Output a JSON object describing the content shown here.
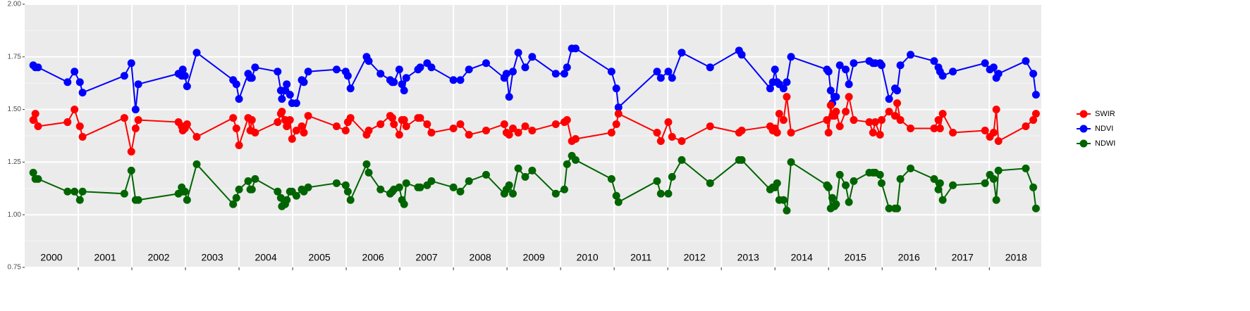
{
  "chart_data": {
    "type": "line",
    "x": [
      2000.16,
      2000.2,
      2000.25,
      2000.8,
      2000.93,
      2001.03,
      2001.08,
      2001.86,
      2001.99,
      2002.07,
      2002.12,
      2002.87,
      2002.93,
      2002.95,
      2002.99,
      2003.03,
      2003.21,
      2003.89,
      2003.95,
      2004.0,
      2004.17,
      2004.21,
      2004.24,
      2004.3,
      2004.72,
      2004.78,
      2004.8,
      2004.86,
      2004.89,
      2004.95,
      2004.99,
      2005.07,
      2005.17,
      2005.21,
      2005.29,
      2005.82,
      2005.99,
      2006.03,
      2006.08,
      2006.38,
      2006.42,
      2006.64,
      2006.82,
      2006.86,
      2006.89,
      2006.99,
      2007.04,
      2007.08,
      2007.12,
      2007.34,
      2007.38,
      2007.51,
      2007.59,
      2008.0,
      2008.13,
      2008.29,
      2008.61,
      2008.95,
      2008.99,
      2009.04,
      2009.11,
      2009.21,
      2009.34,
      2009.47,
      2009.91,
      2010.07,
      2010.12,
      2010.21,
      2010.28,
      2010.95,
      2011.04,
      2011.08,
      2011.8,
      2011.87,
      2012.01,
      2012.08,
      2012.26,
      2012.79,
      2013.33,
      2013.38,
      2013.91,
      2013.96,
      2014.0,
      2014.04,
      2014.08,
      2014.16,
      2014.22,
      2014.3,
      2014.97,
      2015.0,
      2015.04,
      2015.07,
      2015.11,
      2015.14,
      2015.21,
      2015.32,
      2015.38,
      2015.47,
      2015.76,
      2015.83,
      2015.87,
      2015.96,
      2015.99,
      2016.13,
      2016.24,
      2016.28,
      2016.34,
      2016.53,
      2016.97,
      2017.05,
      2017.08,
      2017.13,
      2017.32,
      2017.92,
      2018.01,
      2018.08,
      2018.13,
      2018.17,
      2018.68,
      2018.82,
      2018.87
    ],
    "series": [
      {
        "name": "SWIR",
        "color": "#ff0000",
        "values": [
          1.45,
          1.48,
          1.42,
          1.44,
          1.5,
          1.42,
          1.37,
          1.46,
          1.3,
          1.41,
          1.45,
          1.44,
          1.42,
          1.4,
          1.41,
          1.43,
          1.37,
          1.46,
          1.41,
          1.33,
          1.46,
          1.4,
          1.45,
          1.39,
          1.44,
          1.48,
          1.49,
          1.45,
          1.42,
          1.45,
          1.36,
          1.4,
          1.42,
          1.39,
          1.47,
          1.42,
          1.4,
          1.44,
          1.46,
          1.38,
          1.4,
          1.43,
          1.47,
          1.46,
          1.43,
          1.38,
          1.45,
          1.45,
          1.42,
          1.46,
          1.46,
          1.43,
          1.39,
          1.41,
          1.43,
          1.38,
          1.4,
          1.43,
          1.39,
          1.38,
          1.41,
          1.39,
          1.42,
          1.4,
          1.43,
          1.44,
          1.45,
          1.35,
          1.36,
          1.39,
          1.43,
          1.48,
          1.39,
          1.35,
          1.44,
          1.37,
          1.35,
          1.42,
          1.39,
          1.4,
          1.42,
          1.4,
          1.41,
          1.39,
          1.48,
          1.45,
          1.56,
          1.39,
          1.45,
          1.39,
          1.52,
          1.47,
          1.47,
          1.49,
          1.42,
          1.49,
          1.56,
          1.45,
          1.44,
          1.39,
          1.44,
          1.38,
          1.45,
          1.49,
          1.47,
          1.53,
          1.45,
          1.41,
          1.41,
          1.45,
          1.41,
          1.48,
          1.39,
          1.4,
          1.37,
          1.39,
          1.5,
          1.35,
          1.42,
          1.45,
          1.48
        ]
      },
      {
        "name": "NDVI",
        "color": "#0000ff",
        "values": [
          1.71,
          1.7,
          1.7,
          1.63,
          1.68,
          1.63,
          1.58,
          1.66,
          1.72,
          1.5,
          1.62,
          1.67,
          1.66,
          1.69,
          1.66,
          1.61,
          1.77,
          1.64,
          1.62,
          1.55,
          1.67,
          1.65,
          1.65,
          1.7,
          1.68,
          1.59,
          1.55,
          1.59,
          1.62,
          1.57,
          1.53,
          1.53,
          1.64,
          1.63,
          1.68,
          1.69,
          1.68,
          1.66,
          1.6,
          1.75,
          1.73,
          1.67,
          1.64,
          1.63,
          1.63,
          1.69,
          1.62,
          1.59,
          1.65,
          1.69,
          1.7,
          1.72,
          1.7,
          1.64,
          1.64,
          1.69,
          1.72,
          1.65,
          1.67,
          1.56,
          1.68,
          1.77,
          1.7,
          1.75,
          1.67,
          1.67,
          1.7,
          1.79,
          1.79,
          1.68,
          1.6,
          1.51,
          1.68,
          1.65,
          1.68,
          1.65,
          1.77,
          1.7,
          1.78,
          1.76,
          1.6,
          1.63,
          1.69,
          1.63,
          1.62,
          1.6,
          1.63,
          1.75,
          1.69,
          1.68,
          1.59,
          1.53,
          1.56,
          1.56,
          1.71,
          1.69,
          1.62,
          1.72,
          1.73,
          1.72,
          1.72,
          1.72,
          1.71,
          1.55,
          1.6,
          1.59,
          1.71,
          1.76,
          1.73,
          1.7,
          1.68,
          1.66,
          1.68,
          1.72,
          1.69,
          1.7,
          1.65,
          1.67,
          1.73,
          1.67,
          1.57
        ]
      },
      {
        "name": "NDWI",
        "color": "#006400",
        "values": [
          1.2,
          1.17,
          1.17,
          1.11,
          1.11,
          1.07,
          1.11,
          1.1,
          1.21,
          1.07,
          1.07,
          1.1,
          1.13,
          1.11,
          1.11,
          1.07,
          1.24,
          1.05,
          1.08,
          1.12,
          1.16,
          1.12,
          1.12,
          1.17,
          1.11,
          1.08,
          1.04,
          1.05,
          1.07,
          1.11,
          1.11,
          1.09,
          1.12,
          1.11,
          1.13,
          1.15,
          1.14,
          1.11,
          1.07,
          1.24,
          1.2,
          1.12,
          1.1,
          1.11,
          1.12,
          1.13,
          1.07,
          1.05,
          1.15,
          1.13,
          1.13,
          1.14,
          1.16,
          1.13,
          1.11,
          1.16,
          1.19,
          1.1,
          1.12,
          1.14,
          1.1,
          1.22,
          1.18,
          1.21,
          1.1,
          1.12,
          1.24,
          1.28,
          1.26,
          1.17,
          1.09,
          1.06,
          1.16,
          1.1,
          1.1,
          1.18,
          1.26,
          1.15,
          1.26,
          1.26,
          1.12,
          1.13,
          1.13,
          1.15,
          1.07,
          1.07,
          1.02,
          1.25,
          1.14,
          1.13,
          1.03,
          1.08,
          1.04,
          1.05,
          1.19,
          1.14,
          1.06,
          1.16,
          1.2,
          1.2,
          1.2,
          1.19,
          1.15,
          1.03,
          1.03,
          1.03,
          1.17,
          1.22,
          1.17,
          1.12,
          1.15,
          1.07,
          1.14,
          1.15,
          1.19,
          1.17,
          1.07,
          1.21,
          1.22,
          1.13,
          1.03
        ]
      }
    ],
    "xlim": [
      2000,
      2018.97
    ],
    "xticks": [
      {
        "value": 2000.5,
        "label": "2000"
      },
      {
        "value": 2001.5,
        "label": "2001"
      },
      {
        "value": 2002.5,
        "label": "2002"
      },
      {
        "value": 2003.5,
        "label": "2003"
      },
      {
        "value": 2004.5,
        "label": "2004"
      },
      {
        "value": 2005.5,
        "label": "2005"
      },
      {
        "value": 2006.5,
        "label": "2006"
      },
      {
        "value": 2007.5,
        "label": "2007"
      },
      {
        "value": 2008.5,
        "label": "2008"
      },
      {
        "value": 2009.5,
        "label": "2009"
      },
      {
        "value": 2010.5,
        "label": "2010"
      },
      {
        "value": 2011.5,
        "label": "2011"
      },
      {
        "value": 2012.5,
        "label": "2012"
      },
      {
        "value": 2013.5,
        "label": "2013"
      },
      {
        "value": 2014.5,
        "label": "2014"
      },
      {
        "value": 2015.5,
        "label": "2015"
      },
      {
        "value": 2016.5,
        "label": "2016"
      },
      {
        "value": 2017.5,
        "label": "2017"
      },
      {
        "value": 2018.5,
        "label": "2018"
      }
    ],
    "xgrid": [
      2001,
      2002,
      2003,
      2004,
      2005,
      2006,
      2007,
      2008,
      2009,
      2010,
      2011,
      2012,
      2013,
      2014,
      2015,
      2016,
      2017,
      2018
    ],
    "ylim": [
      0.75,
      2.0
    ],
    "yticks": [
      0.75,
      {
        "value": 1.0,
        "label": "1.00"
      },
      1.25,
      {
        "value": 1.5,
        "label": "1.50"
      },
      1.75,
      {
        "value": 2.0,
        "label": "2.00"
      }
    ],
    "yminor": [
      0.875,
      1.125,
      1.375,
      1.625,
      1.875
    ],
    "grid": true,
    "legend_position": "right"
  }
}
